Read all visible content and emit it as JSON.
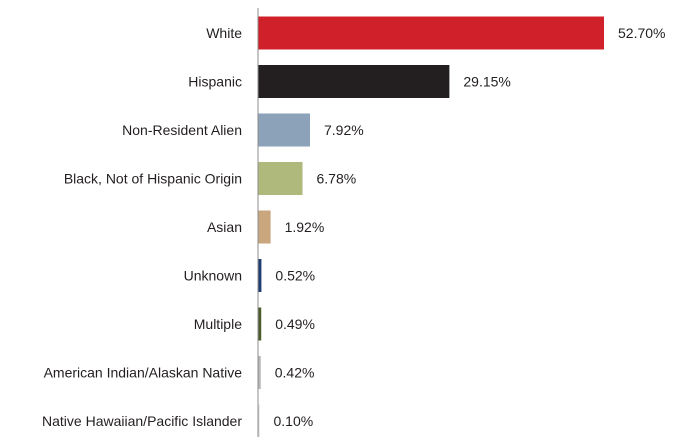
{
  "chart_data": {
    "type": "bar",
    "orientation": "horizontal",
    "title": "",
    "xlabel": "",
    "ylabel": "",
    "categories": [
      "White",
      "Hispanic",
      "Non-Resident Alien",
      "Black, Not of Hispanic Origin",
      "Asian",
      "Unknown",
      "Multiple",
      "American Indian/Alaskan Native",
      "Native Hawaiian/Pacific Islander"
    ],
    "values": [
      52.7,
      29.15,
      7.92,
      6.78,
      1.92,
      0.52,
      0.49,
      0.42,
      0.1
    ],
    "value_labels": [
      "52.70%",
      "29.15%",
      "7.92%",
      "6.78%",
      "1.92%",
      "0.52%",
      "0.49%",
      "0.42%",
      "0.10%"
    ],
    "colors": [
      "#d0202a",
      "#231f20",
      "#8ba2b8",
      "#b0b97c",
      "#c9a67e",
      "#1f3f73",
      "#4a5a2a",
      "#b8b8b8",
      "#d9d9d9"
    ],
    "xlim": [
      0,
      52.7
    ],
    "grid": false,
    "legend": "none"
  }
}
